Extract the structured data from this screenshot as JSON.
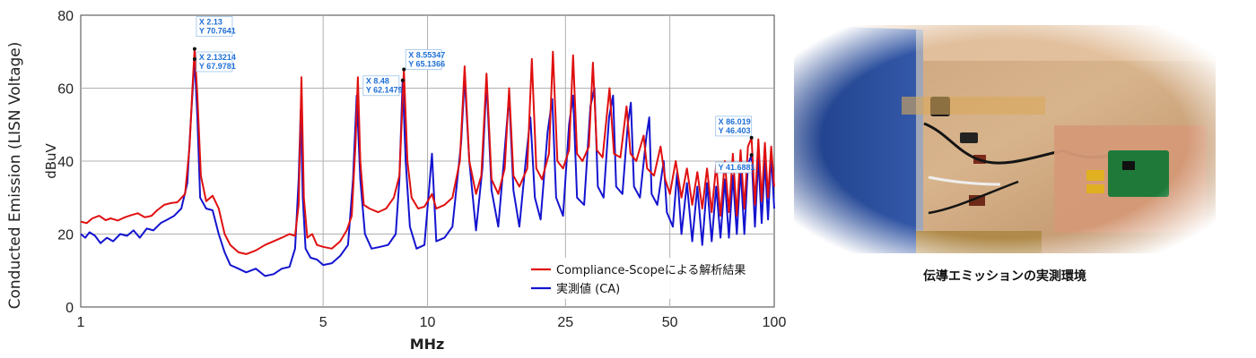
{
  "chart_data": {
    "type": "line",
    "title": "",
    "xlabel": "MHz",
    "ylabel_left": "Conducted Emission (LISN Voltage)",
    "ylabel_inner": "dBuV",
    "x_scale": "log",
    "xlim": [
      1,
      100
    ],
    "ylim": [
      0,
      80
    ],
    "grid": true,
    "x_ticks": [
      1,
      5,
      10,
      25,
      50,
      100
    ],
    "y_ticks": [
      0,
      20,
      40,
      60,
      80
    ],
    "legend_position": "bottom-right",
    "series": [
      {
        "name": "Compliance-Scopeによる解析結果",
        "color": "#e01010",
        "points": [
          [
            1.0,
            23.4
          ],
          [
            1.04,
            23.0
          ],
          [
            1.08,
            24.3
          ],
          [
            1.13,
            25.0
          ],
          [
            1.18,
            23.8
          ],
          [
            1.22,
            24.3
          ],
          [
            1.28,
            23.7
          ],
          [
            1.34,
            24.6
          ],
          [
            1.4,
            25.2
          ],
          [
            1.46,
            25.7
          ],
          [
            1.53,
            24.6
          ],
          [
            1.6,
            25.0
          ],
          [
            1.66,
            26.5
          ],
          [
            1.74,
            28.0
          ],
          [
            1.82,
            28.5
          ],
          [
            1.9,
            28.7
          ],
          [
            2.0,
            31.0
          ],
          [
            2.06,
            44.0
          ],
          [
            2.1,
            60.0
          ],
          [
            2.13,
            70.76
          ],
          [
            2.17,
            58.0
          ],
          [
            2.22,
            36.0
          ],
          [
            2.3,
            29.0
          ],
          [
            2.4,
            30.5
          ],
          [
            2.5,
            27.0
          ],
          [
            2.6,
            20.0
          ],
          [
            2.7,
            17.0
          ],
          [
            2.85,
            15.0
          ],
          [
            3.0,
            14.5
          ],
          [
            3.2,
            15.5
          ],
          [
            3.4,
            17.0
          ],
          [
            3.6,
            18.0
          ],
          [
            3.8,
            19.0
          ],
          [
            4.0,
            20.0
          ],
          [
            4.15,
            19.5
          ],
          [
            4.25,
            28.0
          ],
          [
            4.33,
            63.0
          ],
          [
            4.4,
            30.0
          ],
          [
            4.5,
            19.0
          ],
          [
            4.65,
            20.0
          ],
          [
            4.8,
            17.0
          ],
          [
            5.0,
            16.5
          ],
          [
            5.3,
            16.0
          ],
          [
            5.6,
            18.0
          ],
          [
            5.85,
            21.0
          ],
          [
            6.05,
            25.0
          ],
          [
            6.2,
            45.0
          ],
          [
            6.3,
            63.0
          ],
          [
            6.4,
            40.0
          ],
          [
            6.55,
            28.0
          ],
          [
            6.8,
            27.0
          ],
          [
            7.2,
            26.0
          ],
          [
            7.6,
            27.0
          ],
          [
            8.0,
            30.0
          ],
          [
            8.3,
            36.0
          ],
          [
            8.55,
            65.14
          ],
          [
            8.75,
            40.0
          ],
          [
            9.0,
            30.0
          ],
          [
            9.4,
            27.0
          ],
          [
            9.8,
            27.5
          ],
          [
            10.3,
            31.0
          ],
          [
            10.6,
            27.0
          ],
          [
            11.2,
            28.0
          ],
          [
            11.8,
            30.0
          ],
          [
            12.4,
            40.0
          ],
          [
            12.8,
            66.0
          ],
          [
            13.2,
            40.0
          ],
          [
            13.8,
            31.0
          ],
          [
            14.3,
            36.0
          ],
          [
            14.8,
            64.0
          ],
          [
            15.3,
            35.0
          ],
          [
            16.0,
            31.0
          ],
          [
            16.7,
            38.0
          ],
          [
            17.2,
            60.0
          ],
          [
            17.7,
            36.0
          ],
          [
            18.4,
            33.0
          ],
          [
            19.4,
            38.0
          ],
          [
            20.0,
            68.0
          ],
          [
            20.6,
            38.0
          ],
          [
            21.4,
            35.0
          ],
          [
            22.4,
            42.0
          ],
          [
            23.0,
            70.0
          ],
          [
            23.7,
            40.0
          ],
          [
            24.6,
            38.0
          ],
          [
            25.6,
            43.0
          ],
          [
            26.3,
            69.0
          ],
          [
            27.0,
            42.0
          ],
          [
            28.0,
            40.0
          ],
          [
            29.2,
            44.0
          ],
          [
            30.0,
            67.0
          ],
          [
            30.8,
            43.0
          ],
          [
            32.0,
            41.0
          ],
          [
            33.5,
            60.0
          ],
          [
            34.5,
            42.0
          ],
          [
            36.0,
            41.0
          ],
          [
            37.5,
            55.0
          ],
          [
            38.5,
            42.0
          ],
          [
            40.0,
            40.0
          ],
          [
            42.0,
            47.0
          ],
          [
            43.0,
            38.0
          ],
          [
            45.0,
            36.0
          ],
          [
            47.0,
            44.0
          ],
          [
            48.5,
            35.0
          ],
          [
            50.0,
            31.0
          ],
          [
            52.0,
            40.0
          ],
          [
            54.0,
            30.0
          ],
          [
            56.0,
            38.0
          ],
          [
            58.0,
            28.0
          ],
          [
            60.0,
            37.0
          ],
          [
            62.0,
            27.0
          ],
          [
            64.0,
            38.0
          ],
          [
            66.0,
            26.0
          ],
          [
            68.0,
            39.0
          ],
          [
            70.0,
            25.0
          ],
          [
            72.0,
            40.0
          ],
          [
            74.0,
            26.0
          ],
          [
            76.0,
            42.0
          ],
          [
            78.0,
            25.0
          ],
          [
            80.0,
            43.0
          ],
          [
            82.0,
            27.0
          ],
          [
            84.0,
            44.0
          ],
          [
            86.0,
            46.4
          ],
          [
            88.0,
            28.0
          ],
          [
            90.0,
            46.0
          ],
          [
            92.0,
            29.0
          ],
          [
            94.0,
            45.0
          ],
          [
            96.0,
            30.0
          ],
          [
            98.0,
            44.0
          ],
          [
            100.0,
            33.0
          ]
        ]
      },
      {
        "name": "実測値 (CA)",
        "color": "#1414d0",
        "points": [
          [
            1.0,
            20.0
          ],
          [
            1.03,
            19.0
          ],
          [
            1.06,
            20.5
          ],
          [
            1.1,
            19.5
          ],
          [
            1.14,
            17.5
          ],
          [
            1.19,
            19.0
          ],
          [
            1.24,
            18.0
          ],
          [
            1.3,
            20.0
          ],
          [
            1.36,
            19.5
          ],
          [
            1.42,
            21.0
          ],
          [
            1.48,
            19.0
          ],
          [
            1.55,
            21.5
          ],
          [
            1.62,
            21.0
          ],
          [
            1.7,
            23.0
          ],
          [
            1.78,
            24.0
          ],
          [
            1.86,
            25.0
          ],
          [
            1.95,
            27.0
          ],
          [
            2.03,
            34.0
          ],
          [
            2.08,
            52.0
          ],
          [
            2.13,
            67.98
          ],
          [
            2.17,
            52.0
          ],
          [
            2.21,
            30.0
          ],
          [
            2.3,
            27.0
          ],
          [
            2.4,
            26.5
          ],
          [
            2.5,
            20.0
          ],
          [
            2.6,
            15.0
          ],
          [
            2.7,
            11.5
          ],
          [
            2.85,
            10.5
          ],
          [
            3.0,
            9.5
          ],
          [
            3.2,
            10.5
          ],
          [
            3.4,
            8.5
          ],
          [
            3.6,
            9.0
          ],
          [
            3.8,
            10.5
          ],
          [
            4.0,
            11.0
          ],
          [
            4.15,
            16.0
          ],
          [
            4.25,
            35.0
          ],
          [
            4.31,
            54.0
          ],
          [
            4.37,
            30.0
          ],
          [
            4.45,
            16.0
          ],
          [
            4.6,
            13.5
          ],
          [
            4.8,
            13.0
          ],
          [
            5.0,
            11.5
          ],
          [
            5.3,
            12.0
          ],
          [
            5.6,
            14.0
          ],
          [
            5.9,
            17.0
          ],
          [
            6.1,
            35.0
          ],
          [
            6.25,
            58.0
          ],
          [
            6.4,
            35.0
          ],
          [
            6.6,
            20.0
          ],
          [
            6.9,
            16.0
          ],
          [
            7.3,
            16.5
          ],
          [
            7.7,
            17.0
          ],
          [
            8.1,
            20.0
          ],
          [
            8.3,
            35.0
          ],
          [
            8.48,
            62.15
          ],
          [
            8.65,
            40.0
          ],
          [
            8.9,
            22.0
          ],
          [
            9.3,
            16.0
          ],
          [
            9.8,
            17.0
          ],
          [
            10.3,
            42.0
          ],
          [
            10.6,
            18.0
          ],
          [
            11.2,
            19.0
          ],
          [
            11.8,
            22.0
          ],
          [
            12.5,
            45.0
          ],
          [
            12.8,
            63.0
          ],
          [
            13.2,
            40.0
          ],
          [
            13.8,
            21.0
          ],
          [
            14.4,
            38.0
          ],
          [
            14.8,
            62.0
          ],
          [
            15.3,
            32.0
          ],
          [
            16.0,
            22.0
          ],
          [
            16.6,
            40.0
          ],
          [
            17.2,
            58.0
          ],
          [
            17.7,
            32.0
          ],
          [
            18.4,
            22.0
          ],
          [
            19.2,
            40.0
          ],
          [
            19.8,
            52.0
          ],
          [
            20.4,
            30.0
          ],
          [
            21.2,
            24.0
          ],
          [
            22.2,
            48.0
          ],
          [
            22.9,
            57.0
          ],
          [
            23.5,
            30.0
          ],
          [
            24.6,
            25.0
          ],
          [
            25.6,
            50.0
          ],
          [
            26.3,
            58.0
          ],
          [
            27.0,
            30.0
          ],
          [
            28.3,
            28.0
          ],
          [
            29.5,
            55.0
          ],
          [
            30.3,
            60.0
          ],
          [
            31.0,
            33.0
          ],
          [
            32.2,
            30.0
          ],
          [
            33.4,
            52.0
          ],
          [
            34.3,
            58.0
          ],
          [
            35.0,
            33.0
          ],
          [
            36.5,
            31.0
          ],
          [
            37.8,
            50.0
          ],
          [
            38.6,
            56.0
          ],
          [
            39.4,
            33.0
          ],
          [
            41.0,
            30.0
          ],
          [
            42.8,
            47.0
          ],
          [
            43.6,
            52.0
          ],
          [
            44.3,
            31.0
          ],
          [
            46.0,
            28.0
          ],
          [
            48.0,
            40.0
          ],
          [
            49.0,
            26.0
          ],
          [
            51.0,
            22.0
          ],
          [
            52.5,
            37.0
          ],
          [
            54.0,
            20.0
          ],
          [
            56.0,
            34.0
          ],
          [
            58.0,
            18.0
          ],
          [
            60.0,
            33.0
          ],
          [
            62.0,
            17.0
          ],
          [
            64.0,
            34.0
          ],
          [
            66.0,
            18.0
          ],
          [
            68.0,
            33.0
          ],
          [
            70.0,
            19.0
          ],
          [
            72.0,
            35.0
          ],
          [
            74.0,
            19.0
          ],
          [
            76.0,
            36.0
          ],
          [
            78.0,
            20.0
          ],
          [
            80.0,
            38.0
          ],
          [
            82.0,
            20.0
          ],
          [
            84.0,
            39.0
          ],
          [
            86.0,
            41.69
          ],
          [
            88.0,
            22.0
          ],
          [
            90.0,
            41.0
          ],
          [
            92.0,
            23.0
          ],
          [
            94.0,
            40.0
          ],
          [
            96.0,
            24.0
          ],
          [
            98.0,
            42.0
          ],
          [
            100.0,
            27.0
          ]
        ]
      }
    ],
    "datatips": [
      {
        "x": 2.13,
        "y": 70.76,
        "x_label": "X 2.13",
        "y_label": "Y 70.7641"
      },
      {
        "x": 2.13,
        "y": 67.98,
        "x_label": "X 2.13214",
        "y_label": "Y 67.9781"
      },
      {
        "x": 8.55,
        "y": 65.14,
        "x_label": "X 8.55347",
        "y_label": "Y 65.1366"
      },
      {
        "x": 8.48,
        "y": 62.15,
        "x_label": "X 8.48",
        "y_label": "Y 62.1479"
      },
      {
        "x": 86.0,
        "y": 46.4,
        "x_label": "X 86.019",
        "y_label": "Y 46.403"
      },
      {
        "x": 86.0,
        "y": 41.69,
        "x_label": "",
        "y_label": "Y 41.6881"
      }
    ]
  },
  "photo": {
    "caption": "伝導エミッションの実測環境"
  }
}
